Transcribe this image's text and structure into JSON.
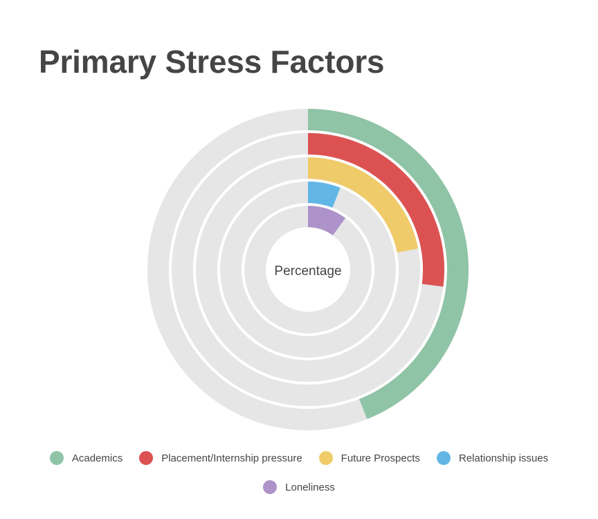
{
  "title": "Primary Stress Factors",
  "center_label": "Percentage",
  "track_color": "#e6e6e6",
  "chart_data": {
    "type": "radial-bar",
    "title": "Primary Stress Factors",
    "center_label": "Percentage",
    "max": 100,
    "series": [
      {
        "name": "Academics",
        "value": 44,
        "color": "#8fc4a6"
      },
      {
        "name": "Placement/Internship pressure",
        "value": 27,
        "color": "#dc5252"
      },
      {
        "name": "Future Prospects",
        "value": 22,
        "color": "#f0cb69"
      },
      {
        "name": "Relationship issues",
        "value": 6,
        "color": "#62b6e6"
      },
      {
        "name": "Loneliness",
        "value": 10,
        "color": "#ad93c9"
      }
    ],
    "legend_position": "bottom"
  }
}
